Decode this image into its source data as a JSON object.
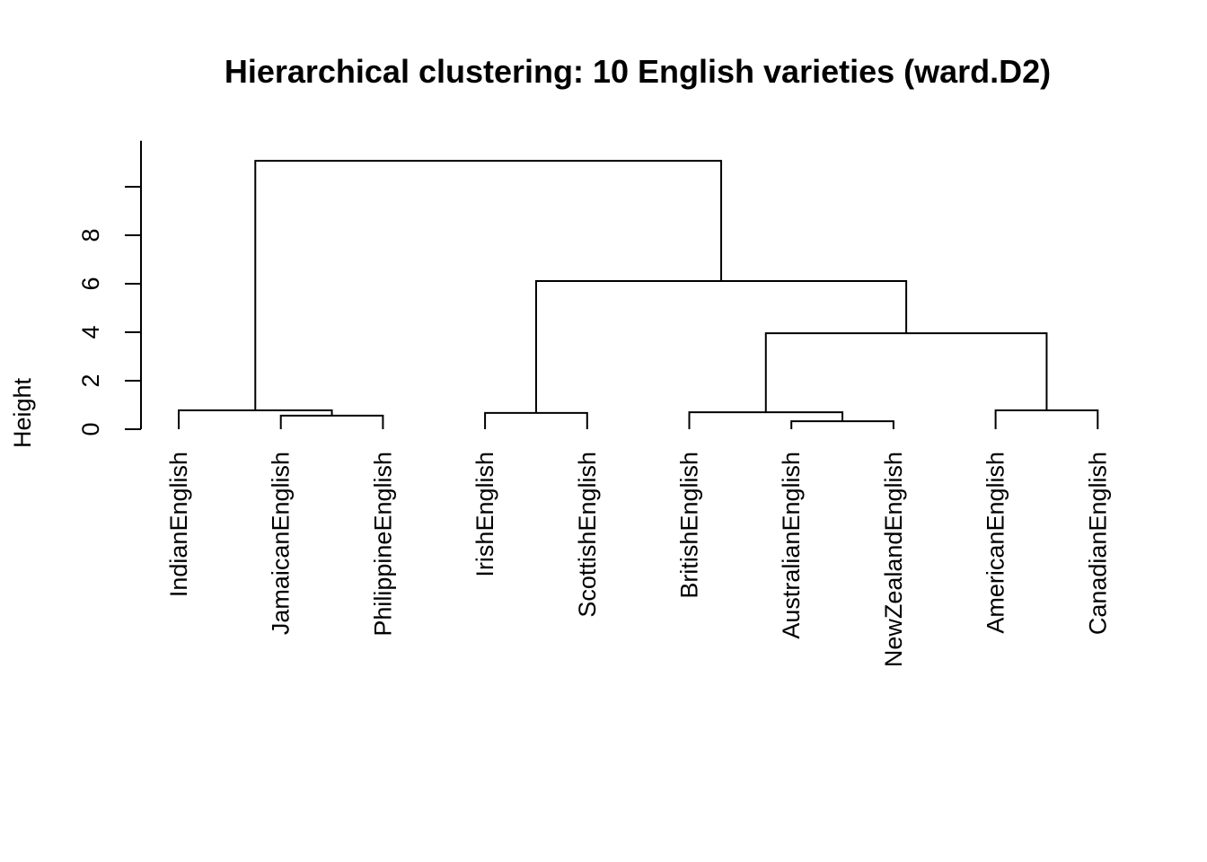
{
  "chart_data": {
    "type": "dendrogram",
    "title": "Hierarchical clustering: 10 English varieties (ward.D2)",
    "xlabel": "",
    "ylabel": "Height",
    "ylim": [
      0,
      11.9
    ],
    "yticks": [
      0,
      2,
      4,
      6,
      8,
      10
    ],
    "ytick_labels": [
      "0",
      "2",
      "4",
      "6",
      "8",
      ""
    ],
    "leaves": [
      "IndianEnglish",
      "JamaicanEnglish",
      "PhilippineEnglish",
      "IrishEnglish",
      "ScottishEnglish",
      "BritishEnglish",
      "AustralianEnglish",
      "NewZealandEnglish",
      "AmericanEnglish",
      "CanadianEnglish"
    ],
    "merges": [
      {
        "left": "JamaicanEnglish",
        "right": "PhilippineEnglish",
        "height": 0.56
      },
      {
        "left": "IndianEnglish",
        "right": "m1",
        "height": 0.78
      },
      {
        "left": "IrishEnglish",
        "right": "ScottishEnglish",
        "height": 0.67
      },
      {
        "left": "AustralianEnglish",
        "right": "NewZealandEnglish",
        "height": 0.33
      },
      {
        "left": "BritishEnglish",
        "right": "m4",
        "height": 0.7
      },
      {
        "left": "AmericanEnglish",
        "right": "CanadianEnglish",
        "height": 0.78
      },
      {
        "left": "m5",
        "right": "m6",
        "height": 3.96
      },
      {
        "left": "m3",
        "right": "m7",
        "height": 6.11
      },
      {
        "left": "m2",
        "right": "m8",
        "height": 11.07
      }
    ],
    "grid": false,
    "color": "#000000"
  }
}
